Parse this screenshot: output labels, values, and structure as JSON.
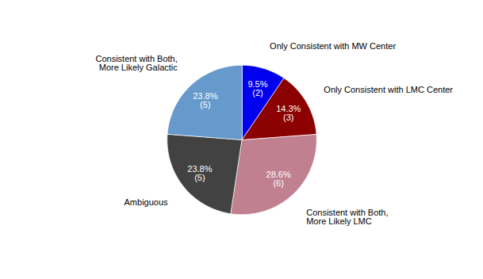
{
  "chart_data": {
    "type": "pie",
    "categories": [
      "Only Consistent with MW Center",
      "Only Consistent with LMC Center",
      "Consistent with Both,\nMore Likely LMC",
      "Ambiguous",
      "Consistent with Both,\nMore Likely Galactic"
    ],
    "values": [
      9.5,
      14.3,
      28.6,
      23.8,
      23.8
    ],
    "colors": [
      "#0000EE",
      "#8B0000",
      "#C08090",
      "#424242",
      "#6699CC"
    ],
    "data_labels": true,
    "value_labels": [
      "9.5%\n(2)",
      "14.3%\n(3)",
      "28.6%\n(6)",
      "23.8%\n(5)",
      "23.8%\n(5)"
    ]
  }
}
